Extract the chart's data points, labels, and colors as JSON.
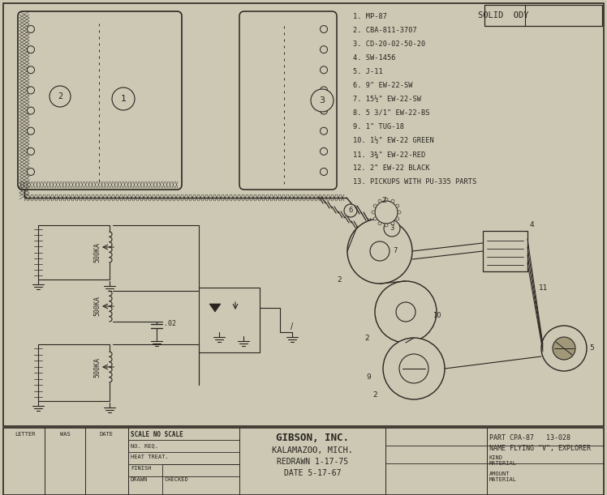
{
  "bg_color": "#ccc8b4",
  "line_color": "#2a2520",
  "parts_list": [
    "1. MP-87",
    "2. CBA-811-3707",
    "3. CD-20-02-50-20",
    "4. SW-1456",
    "5. J-11",
    "6. 9\" EW-22-SW",
    "7. 15½\" EW-22-SW",
    "8. 5 3/1\" EW-22-BS",
    "9. 1\" TUG-18",
    "10. 1½\" EW-22 GREEN",
    "11. 3¾\" EW-22-RED",
    "12. 2\" EW-22 BLACK",
    "13. PICKUPS WITH PU-335 PARTS"
  ],
  "solid_ody": "SOLID  ODY",
  "footer_scale": "SCALE NO SCALE",
  "footer_no_req": "NO. REQ.",
  "footer_heat": "HEAT TREAT.",
  "footer_finish": "FINISH",
  "footer_drawn": "DRAWN",
  "footer_checked": "CHECKED",
  "footer_company": "GIBSON, INC.",
  "footer_city": "KALAMAZOO, MICH.",
  "footer_redrawn": "REDRAWN 1-17-75",
  "footer_date2": "DATE 5-17-67",
  "footer_part": "PART CPA-87   13-028",
  "footer_name": "NAME FLYING \"V\", EXPLORER",
  "footer_kind": "KIND",
  "footer_material": "MATERIAL",
  "footer_amount": "AMOUNT",
  "footer_material2": "MATERIAL",
  "footer_letter": "LETTER",
  "footer_was": "WAS",
  "footer_date": "DATE"
}
